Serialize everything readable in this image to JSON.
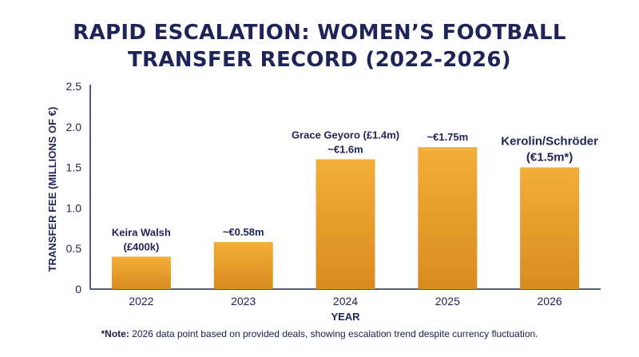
{
  "title": {
    "line1": "RAPID ESCALATION: WOMEN’S FOOTBALL",
    "line2": "TRANSFER RECORD (2022-2026)"
  },
  "chart_data": {
    "type": "bar",
    "categories": [
      "2022",
      "2023",
      "2024",
      "2025",
      "2026"
    ],
    "values": [
      0.4,
      0.58,
      1.6,
      1.75,
      1.5
    ],
    "data_labels": [
      [
        "Keira Walsh",
        "(£400k)"
      ],
      [
        "~€0.58m"
      ],
      [
        "Grace Geyoro (£1.4m)",
        "~€1.6m"
      ],
      [
        "~€1.75m"
      ],
      [
        "Kerolin/Schröder",
        "(€1.5m*)"
      ]
    ],
    "xlabel": "YEAR",
    "ylabel": "TRANSFER FEE (MILLIONS OF €)",
    "ylim": [
      0,
      2.5
    ],
    "yticks": [
      "0",
      "0.5",
      "1.0",
      "1.5",
      "2.0",
      "2.5"
    ],
    "grid": false,
    "bar_color_top": "#f2ae3a",
    "bar_color_bottom": "#d98c1e",
    "text_color": "#1e2457"
  },
  "note": {
    "label": "*Note:",
    "text": " 2026 data point based on provided deals, showing escalation trend despite currency fluctuation."
  }
}
